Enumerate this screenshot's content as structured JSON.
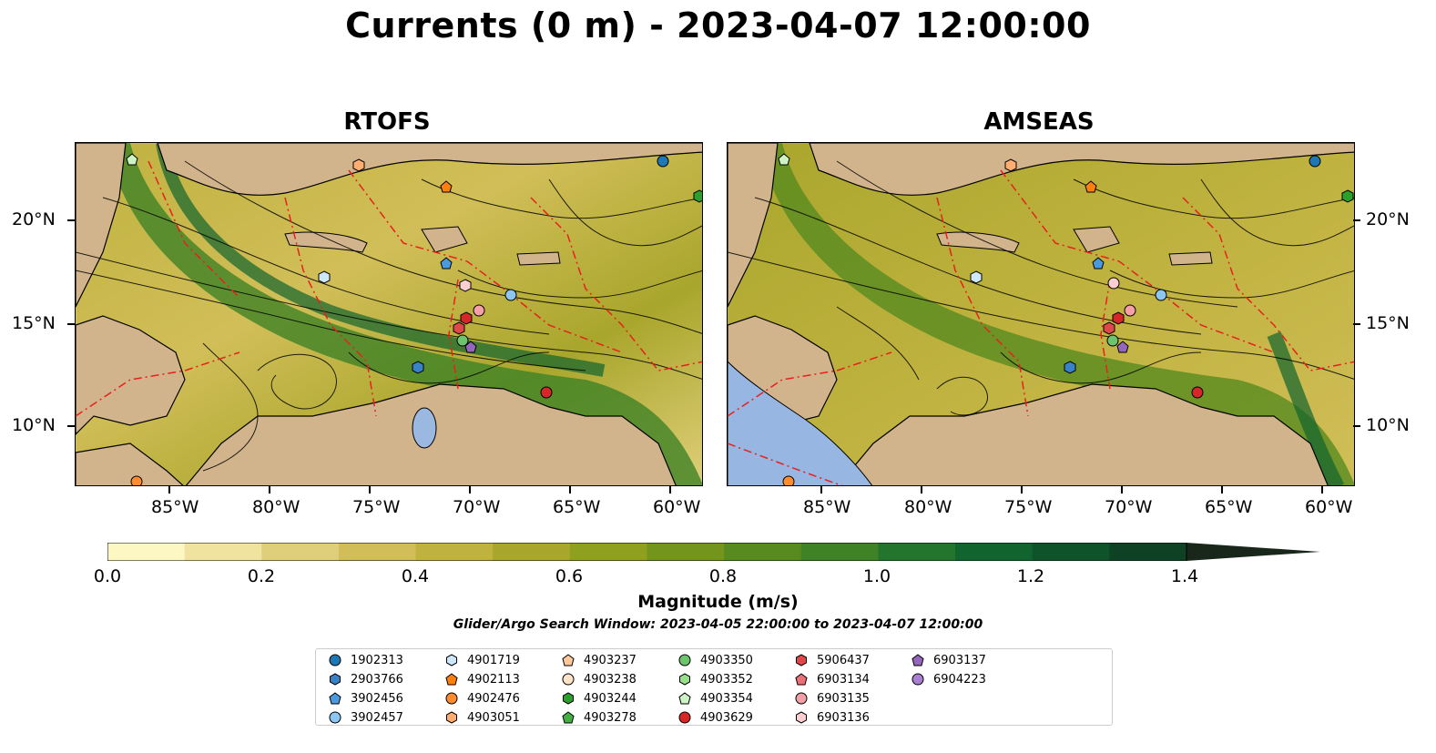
{
  "title": "Currents (0 m) - 2023-04-07 12:00:00",
  "panels": [
    {
      "title": "RTOFS"
    },
    {
      "title": "AMSEAS"
    }
  ],
  "axes": {
    "x_ticks": [
      "85°W",
      "80°W",
      "75°W",
      "70°W",
      "65°W",
      "60°W"
    ],
    "y_ticks": [
      "20°N",
      "15°N",
      "10°N"
    ]
  },
  "colorbar": {
    "label": "Magnitude (m/s)",
    "ticks": [
      "0.0",
      "0.2",
      "0.4",
      "0.6",
      "0.8",
      "1.0",
      "1.2",
      "1.4"
    ],
    "colors": [
      "#fdf7c3",
      "#f0e3a0",
      "#e0cf7a",
      "#d1be58",
      "#bfb23f",
      "#a9a62c",
      "#8fa01f",
      "#73951b",
      "#588b1f",
      "#3f8226",
      "#23742c",
      "#11642e",
      "#0e532a",
      "#0f4224",
      "#13331e",
      "#19271a"
    ],
    "extend": "max"
  },
  "search_window": "Glider/Argo Search Window: 2023-04-05 22:00:00 to 2023-04-07 12:00:00",
  "land_color": "#d2b48c",
  "legend": [
    {
      "id": "1902313",
      "marker": "circle",
      "color": "#1f77b4"
    },
    {
      "id": "2903766",
      "marker": "hexagon",
      "color": "#3a82c8"
    },
    {
      "id": "3902456",
      "marker": "pentagon",
      "color": "#4b9ae0"
    },
    {
      "id": "3902457",
      "marker": "circle",
      "color": "#8ec6f2"
    },
    {
      "id": "4901719",
      "marker": "hexagon",
      "color": "#cfe7fb"
    },
    {
      "id": "4902113",
      "marker": "pentagon",
      "color": "#ff7f0e"
    },
    {
      "id": "4902476",
      "marker": "circle",
      "color": "#ff8c2e"
    },
    {
      "id": "4903051",
      "marker": "hexagon",
      "color": "#ffad70"
    },
    {
      "id": "4903237",
      "marker": "pentagon",
      "color": "#ffc999"
    },
    {
      "id": "4903238",
      "marker": "circle",
      "color": "#ffe3c9"
    },
    {
      "id": "4903244",
      "marker": "hexagon",
      "color": "#2ca02c"
    },
    {
      "id": "4903278",
      "marker": "pentagon",
      "color": "#44b044"
    },
    {
      "id": "4903350",
      "marker": "circle",
      "color": "#6cc46c"
    },
    {
      "id": "4903352",
      "marker": "hexagon",
      "color": "#98df8a"
    },
    {
      "id": "4903354",
      "marker": "pentagon",
      "color": "#cdf2c4"
    },
    {
      "id": "4903629",
      "marker": "circle",
      "color": "#d62728"
    },
    {
      "id": "5906437",
      "marker": "hexagon",
      "color": "#e0474a"
    },
    {
      "id": "6903134",
      "marker": "pentagon",
      "color": "#ec7077"
    },
    {
      "id": "6903135",
      "marker": "circle",
      "color": "#f4a0a6"
    },
    {
      "id": "6903136",
      "marker": "hexagon",
      "color": "#fbcfd2"
    },
    {
      "id": "6903137",
      "marker": "pentagon",
      "color": "#9467bd"
    },
    {
      "id": "6904223",
      "marker": "circle",
      "color": "#a97fd4"
    }
  ]
}
